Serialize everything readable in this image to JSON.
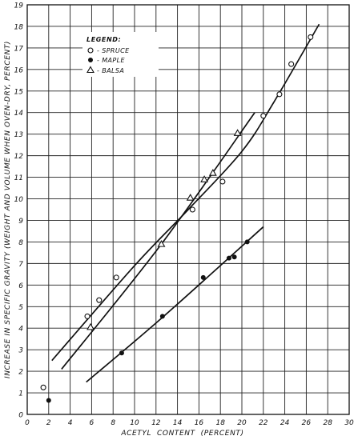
{
  "chart_data": {
    "type": "scatter",
    "xlabel": "ACETYL  CONTENT  (PERCENT)",
    "ylabel": "INCREASE IN SPECIFIC GRAVITY (WEIGHT AND VOLUME WHEN OVEN-DRY, PERCENT)",
    "xlim": [
      0,
      30
    ],
    "ylim": [
      0,
      19
    ],
    "x_ticks": [
      0,
      2,
      4,
      6,
      8,
      10,
      12,
      14,
      16,
      18,
      20,
      22,
      24,
      26,
      28,
      30
    ],
    "y_ticks": [
      0,
      1,
      2,
      3,
      4,
      5,
      6,
      7,
      8,
      9,
      10,
      11,
      12,
      13,
      14,
      15,
      16,
      17,
      18,
      19
    ],
    "grid": true,
    "legend_title": "LEGEND:",
    "legend_position": "top-left",
    "series": [
      {
        "name": "SPRUCE",
        "marker": "open-circle",
        "points": [
          [
            1.5,
            1.25
          ],
          [
            5.6,
            4.55
          ],
          [
            6.7,
            5.3
          ],
          [
            8.3,
            6.35
          ],
          [
            15.4,
            9.5
          ],
          [
            18.2,
            10.8
          ],
          [
            22.0,
            13.85
          ],
          [
            23.5,
            14.85
          ],
          [
            24.6,
            16.25
          ],
          [
            26.4,
            17.5
          ]
        ],
        "trend": [
          [
            2.3,
            2.5
          ],
          [
            10.0,
            6.9
          ],
          [
            15.0,
            9.5
          ],
          [
            20.0,
            12.2
          ],
          [
            23.0,
            14.5
          ],
          [
            27.2,
            18.1
          ]
        ]
      },
      {
        "name": "MAPLE",
        "marker": "filled-circle",
        "points": [
          [
            2.0,
            0.65
          ],
          [
            8.8,
            2.85
          ],
          [
            12.6,
            4.55
          ],
          [
            16.4,
            6.35
          ],
          [
            18.8,
            7.25
          ],
          [
            19.3,
            7.3
          ],
          [
            20.5,
            8.0
          ]
        ],
        "trend": [
          [
            5.5,
            1.5
          ],
          [
            12.6,
            4.5
          ],
          [
            22.0,
            8.7
          ]
        ]
      },
      {
        "name": "BALSA",
        "marker": "triangle",
        "points": [
          [
            5.9,
            4.05
          ],
          [
            12.5,
            7.9
          ],
          [
            15.2,
            10.05
          ],
          [
            16.5,
            10.9
          ],
          [
            17.3,
            11.2
          ],
          [
            19.6,
            13.05
          ]
        ],
        "trend": [
          [
            3.2,
            2.1
          ],
          [
            12.5,
            7.9
          ],
          [
            21.2,
            14.0
          ]
        ]
      }
    ]
  }
}
